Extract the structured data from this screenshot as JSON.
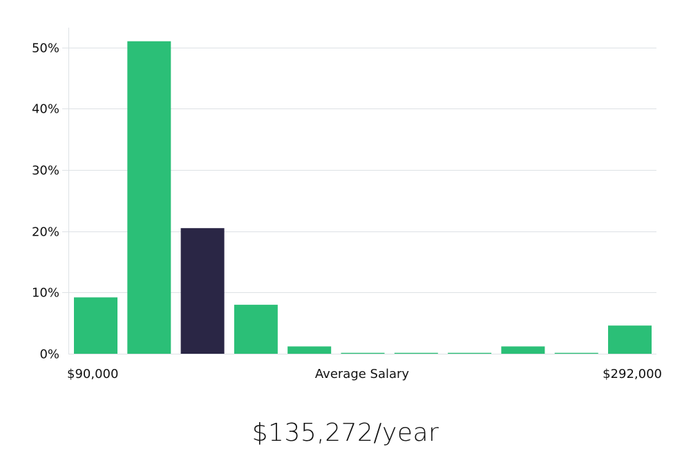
{
  "chart_data": {
    "type": "bar",
    "categories": [
      "1",
      "2",
      "3",
      "4",
      "5",
      "6",
      "7",
      "8",
      "9",
      "10",
      "11"
    ],
    "values": [
      9.2,
      51.0,
      20.5,
      8.0,
      1.2,
      0.15,
      0.15,
      0.15,
      1.2,
      0.15,
      4.6
    ],
    "highlight_index": 2,
    "ylim": [
      0,
      53
    ],
    "yticks": [
      0,
      10,
      20,
      30,
      40,
      50
    ],
    "ytick_labels": [
      "0%",
      "10%",
      "20%",
      "30%",
      "40%",
      "50%"
    ],
    "x_min_label": "$90,000",
    "x_center_label": "Average Salary",
    "x_max_label": "$292,000",
    "grid": true,
    "colors": {
      "bar": "#2bbf77",
      "highlight": "#2a2645",
      "grid": "#dde1e5"
    }
  },
  "summary": {
    "salary_text": "$135,272/year"
  }
}
